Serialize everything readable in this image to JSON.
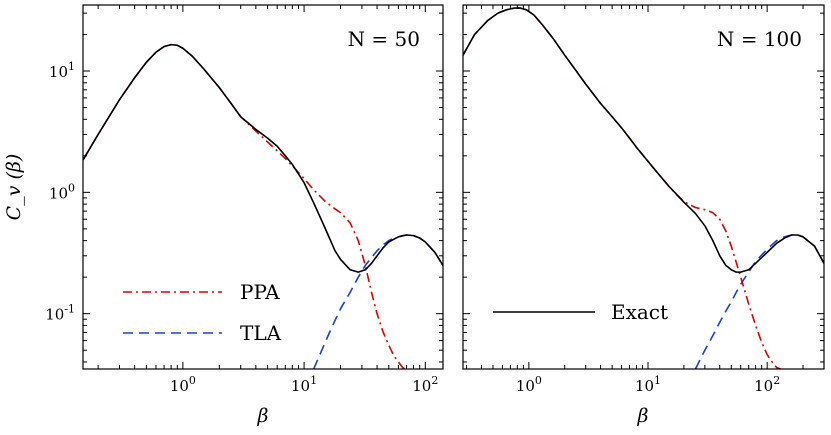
{
  "chart_data": [
    {
      "type": "line",
      "annotation": "N = 50",
      "xlabel": "β",
      "ylabel": "C_v (β)",
      "xscale": "log",
      "yscale": "log",
      "xlim": [
        0.15,
        140
      ],
      "ylim": [
        0.035,
        35
      ],
      "xticks": [
        1,
        10,
        100
      ],
      "xtick_labels": [
        "10^0",
        "10^1",
        "10^2"
      ],
      "yticks": [
        0.1,
        1,
        10
      ],
      "ytick_labels": [
        "10^-1",
        "10^0",
        "10^1"
      ],
      "legend": {
        "placement": "lower-left",
        "entries": [
          "PPA",
          "TLA"
        ]
      },
      "series": [
        {
          "name": "Exact",
          "color": "#000000",
          "style": "solid",
          "x": [
            0.15,
            0.2,
            0.3,
            0.4,
            0.5,
            0.6,
            0.7,
            0.8,
            0.9,
            1.0,
            1.2,
            1.5,
            2.0,
            2.5,
            3.0,
            4.0,
            5.0,
            6.0,
            7.0,
            8.0,
            10,
            12,
            15,
            18,
            20,
            24,
            28,
            32,
            36,
            40,
            45,
            50,
            60,
            70,
            80,
            90,
            100,
            120,
            140
          ],
          "y": [
            1.85,
            3.0,
            5.8,
            8.8,
            11.8,
            14.3,
            15.9,
            16.5,
            16.3,
            15.4,
            13.2,
            10.3,
            7.3,
            5.4,
            4.2,
            3.3,
            2.8,
            2.4,
            2.0,
            1.7,
            1.2,
            0.82,
            0.5,
            0.33,
            0.28,
            0.23,
            0.22,
            0.23,
            0.26,
            0.3,
            0.35,
            0.39,
            0.43,
            0.445,
            0.44,
            0.42,
            0.39,
            0.32,
            0.25
          ]
        },
        {
          "name": "PPA",
          "color": "#dd0000",
          "style": "dashdot",
          "x": [
            0.15,
            0.2,
            0.3,
            0.4,
            0.5,
            0.6,
            0.7,
            0.8,
            0.9,
            1.0,
            1.2,
            1.5,
            2.0,
            2.5,
            3.0,
            4.0,
            5.0,
            6.0,
            7.0,
            8.0,
            10,
            12,
            15,
            18,
            20,
            24,
            28,
            32,
            36,
            40,
            45,
            50,
            55,
            60,
            65,
            68
          ],
          "y": [
            1.85,
            3.0,
            5.8,
            8.8,
            11.8,
            14.3,
            15.9,
            16.5,
            16.3,
            15.4,
            13.2,
            10.3,
            7.3,
            5.4,
            4.2,
            3.2,
            2.6,
            2.2,
            1.9,
            1.65,
            1.3,
            1.05,
            0.84,
            0.73,
            0.68,
            0.56,
            0.4,
            0.25,
            0.15,
            0.1,
            0.07,
            0.055,
            0.045,
            0.04,
            0.036,
            0.035
          ]
        },
        {
          "name": "TLA",
          "color": "#1a3fd6",
          "style": "dashed",
          "x": [
            12,
            14,
            16,
            18,
            20,
            24,
            28,
            32,
            36,
            40,
            45,
            50,
            55,
            60,
            65,
            70,
            80,
            90,
            100,
            120,
            140
          ],
          "y": [
            0.035,
            0.05,
            0.068,
            0.088,
            0.11,
            0.15,
            0.2,
            0.25,
            0.29,
            0.33,
            0.37,
            0.4,
            0.42,
            0.43,
            0.44,
            0.445,
            0.44,
            0.42,
            0.39,
            0.32,
            0.25
          ]
        }
      ]
    },
    {
      "type": "line",
      "annotation": "N = 100",
      "xlabel": "β",
      "xscale": "log",
      "yscale": "log",
      "xlim": [
        0.28,
        300
      ],
      "ylim": [
        0.035,
        35
      ],
      "xticks": [
        1,
        10,
        100
      ],
      "xtick_labels": [
        "10^0",
        "10^1",
        "10^2"
      ],
      "yticks": [
        0.1,
        1,
        10
      ],
      "legend": {
        "placement": "lower-left",
        "entries": [
          "Exact"
        ]
      },
      "series": [
        {
          "name": "Exact",
          "color": "#000000",
          "style": "solid",
          "x": [
            0.28,
            0.35,
            0.45,
            0.55,
            0.65,
            0.75,
            0.85,
            0.95,
            1.1,
            1.3,
            1.6,
            2.0,
            2.5,
            3.0,
            4.0,
            5.0,
            6.0,
            7.0,
            8.0,
            10,
            12,
            15,
            18,
            20,
            25,
            30,
            35,
            40,
            45,
            50,
            55,
            60,
            70,
            80,
            100,
            120,
            140,
            160,
            180,
            200,
            250,
            300
          ],
          "y": [
            13.5,
            20,
            26,
            30,
            32,
            33,
            33,
            32,
            29,
            24,
            18.5,
            13.5,
            10,
            7.8,
            5.4,
            4.2,
            3.4,
            2.8,
            2.35,
            1.8,
            1.45,
            1.12,
            0.93,
            0.83,
            0.67,
            0.53,
            0.4,
            0.3,
            0.25,
            0.23,
            0.22,
            0.22,
            0.23,
            0.26,
            0.32,
            0.38,
            0.42,
            0.445,
            0.445,
            0.43,
            0.36,
            0.26
          ]
        },
        {
          "name": "PPA",
          "color": "#dd0000",
          "style": "dashdot",
          "x": [
            0.28,
            0.35,
            0.45,
            0.55,
            0.65,
            0.75,
            0.85,
            0.95,
            1.1,
            1.3,
            1.6,
            2.0,
            2.5,
            3.0,
            4.0,
            5.0,
            6.0,
            7.0,
            8.0,
            10,
            12,
            15,
            18,
            20,
            25,
            30,
            35,
            40,
            45,
            50,
            60,
            70,
            80,
            90,
            100,
            110,
            120,
            130
          ],
          "y": [
            13.5,
            20,
            26,
            30,
            32,
            33,
            33,
            32,
            29,
            24,
            18.5,
            13.5,
            10,
            7.8,
            5.4,
            4.2,
            3.4,
            2.8,
            2.35,
            1.8,
            1.45,
            1.12,
            0.92,
            0.84,
            0.75,
            0.72,
            0.68,
            0.6,
            0.48,
            0.36,
            0.2,
            0.12,
            0.08,
            0.058,
            0.046,
            0.04,
            0.036,
            0.035
          ]
        },
        {
          "name": "TLA",
          "color": "#1a3fd6",
          "style": "dashed",
          "x": [
            25,
            30,
            35,
            40,
            45,
            50,
            55,
            60,
            70,
            80,
            100,
            120,
            140,
            160,
            180,
            200,
            250,
            300
          ],
          "y": [
            0.035,
            0.05,
            0.066,
            0.085,
            0.105,
            0.125,
            0.15,
            0.175,
            0.22,
            0.27,
            0.34,
            0.4,
            0.43,
            0.445,
            0.445,
            0.43,
            0.36,
            0.26
          ]
        }
      ]
    }
  ]
}
